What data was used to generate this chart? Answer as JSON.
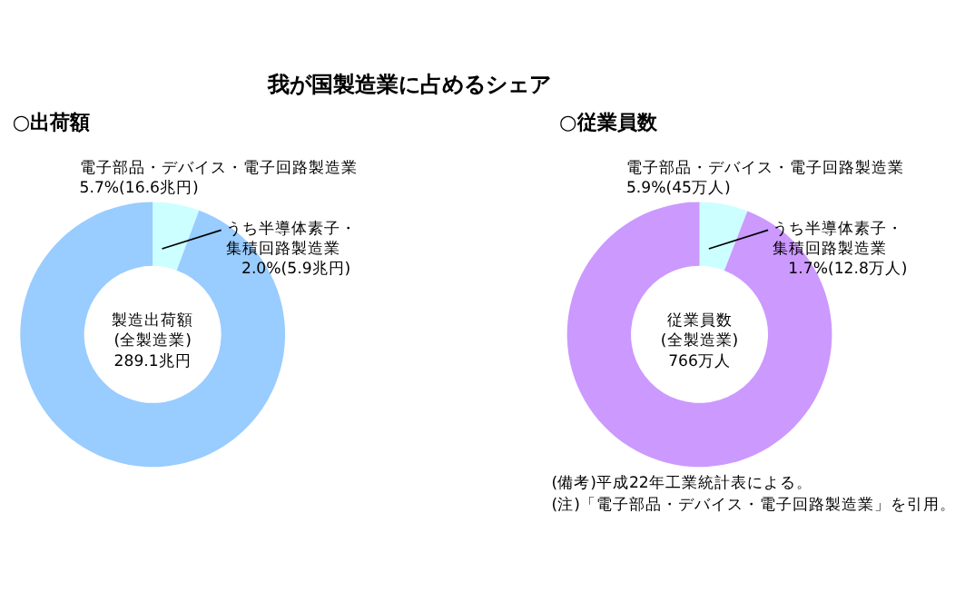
{
  "chart_data": [
    {
      "type": "donut",
      "title": "我が国製造業に占めるシェア",
      "subtitle": "○出荷額",
      "categories": [
        "電子部品・デバイス・電子回路製造業",
        null
      ],
      "values": [
        5.7,
        94.3
      ],
      "colors": [
        "#ccffff",
        "#99ccff"
      ],
      "value_labels": [
        "5.7%(16.6兆円)",
        null
      ],
      "annotations": [
        "製造出荷額\n(全製造業)\n289.1兆円",
        "うち半導体素子・",
        "集積回路製造業",
        "2.0%(5.9兆円)"
      ]
    },
    {
      "type": "donut",
      "subtitle": "○従業員数",
      "categories": [
        "電子部品・デバイス・電子回路製造業",
        null
      ],
      "values": [
        5.9,
        94.1
      ],
      "colors": [
        "#ccffff",
        "#cc99ff"
      ],
      "value_labels": [
        "5.9%(45万人)",
        null
      ],
      "annotations": [
        "従業員数\n(全製造業)\n766万人",
        "うち半導体素子・",
        "集積回路製造業",
        "1.7%(12.8万人)",
        "(備考)平成22年工業統計表による。",
        "(注)「電子部品・デバイス・電子回路製造業」を引用。"
      ]
    }
  ]
}
